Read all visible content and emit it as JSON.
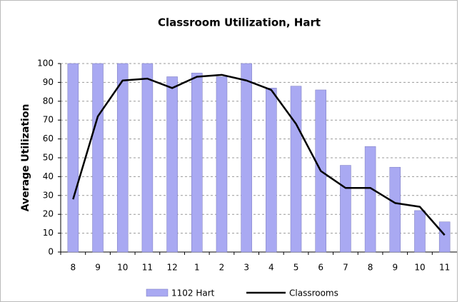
{
  "chart_data": {
    "type": "bar",
    "title": "Classroom Utilization, Hart",
    "y_label": "Average Utilization",
    "categories": [
      "8",
      "9",
      "10",
      "11",
      "12",
      "1",
      "2",
      "3",
      "4",
      "5",
      "6",
      "7",
      "8",
      "9",
      "10",
      "11"
    ],
    "series": [
      {
        "name": "1102 Hart",
        "type": "bar",
        "color": "#a9a9f2",
        "values": [
          100,
          100,
          100,
          100,
          93,
          95,
          93,
          100,
          87,
          88,
          86,
          46,
          56,
          45,
          22,
          16
        ]
      },
      {
        "name": "Classrooms",
        "type": "line",
        "color": "#000000",
        "values": [
          28,
          72,
          91,
          92,
          87,
          93,
          94,
          91,
          86,
          68,
          43,
          34,
          34,
          26,
          24,
          9
        ]
      }
    ],
    "ylim": [
      0,
      100
    ],
    "yticks": [
      0,
      10,
      20,
      30,
      40,
      50,
      60,
      70,
      80,
      90,
      100
    ],
    "grid": true
  }
}
